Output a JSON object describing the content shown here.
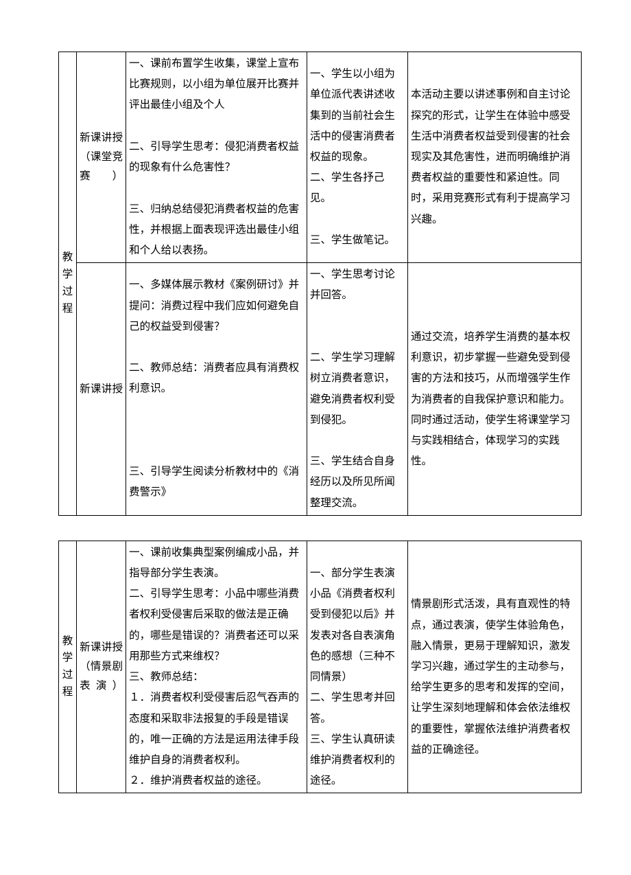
{
  "tables": [
    {
      "sideLabel": "教学过程",
      "rows": [
        {
          "phase": "新课讲授（课堂竞赛）",
          "teacher": [
            "一、课前布置学生收集，课堂上宣布比赛规则，以小组为单位展开比赛并评出最佳小组及个人",
            "",
            "二、引导学生思考：侵犯消费者权益的现象有什么危害性？",
            "",
            "三、归纳总结侵犯消费者权益的危害性，并根据上面表现评选出最佳小组和个人给以表扬。"
          ],
          "student": [
            "一、学生以小组为单位派代表讲述收集到的当前社会生活中的侵害消费者权益的现象。",
            "二、学生各抒己见。",
            "",
            "三、学生做笔记。"
          ],
          "design": [
            "本活动主要以讲述事例和自主讨论探究的形式，让学生在体验中感受生活中消费者权益受到侵害的社会现实及其危害性，进而明确维护消费者权益的重要性和紧迫性。同时，采用竞赛形式有利于提高学习兴趣。"
          ]
        },
        {
          "phase": "新课讲授",
          "teacher": [
            "一、多媒体展示教材《案例研讨》并提问：消费过程中我们应如何避免自己的权益受到侵害？",
            "",
            "二、教师总结：消费者应具有消费权利意识。",
            "",
            "",
            "",
            "三、引导学生阅读分析教材中的《消费警示》"
          ],
          "student": [
            "一、学生思考讨论并回答。",
            "",
            "",
            "二、学生学习理解树立消费者意识，避免消费者权利受到侵犯。",
            "",
            "三、学生结合自身经历以及所见所闻整理交流。"
          ],
          "design": [
            "",
            "通过交流，培养学生消费的基本权利意识，初步掌握一些避免受到侵害的方法和技巧，从而增强学生作为消费者的自我保护意识和能力。同时通过活动，使学生将课堂学习与实践相结合，体现学习的实践性。"
          ]
        }
      ]
    },
    {
      "sideLabel": "教学过程",
      "rows": [
        {
          "phase": "新课讲授（情景剧表演）",
          "teacher": [
            "一、课前收集典型案例编成小品，并指导部分学生表演。",
            "二、引导学生思考：小品中哪些消费者权利受侵害后采取的做法是正确的，哪些是错误的？消费者还可以采用那些方式来维权？",
            "三、教师总结：",
            "１．消费者权利受侵害后忍气吞声的态度和采取非法报复的手段是错误的，唯一正确的方法是运用法律手段维护自身的消费者权利。",
            "２．维护消费者权益的途径。"
          ],
          "student": [
            "",
            "一、部分学生表演小品《消费者权利受到侵犯以后》并发表对各自表演角色的感想（三种不同情景）",
            "二、学生思考并回答。",
            "三、学生认真研读维护消费者权利的途径。"
          ],
          "design": [
            "",
            "情景剧形式活泼，具有直观性的特点，通过表演，使学生体验角色，融入情景，更易于理解知识，激发学习兴趣，通过学生的主动参与，给学生更多的思考和发挥的空间，让学生深刻地理解和体会依法维权的重要性，掌握依法维护消费者权益的正确途径。"
          ]
        }
      ]
    }
  ]
}
